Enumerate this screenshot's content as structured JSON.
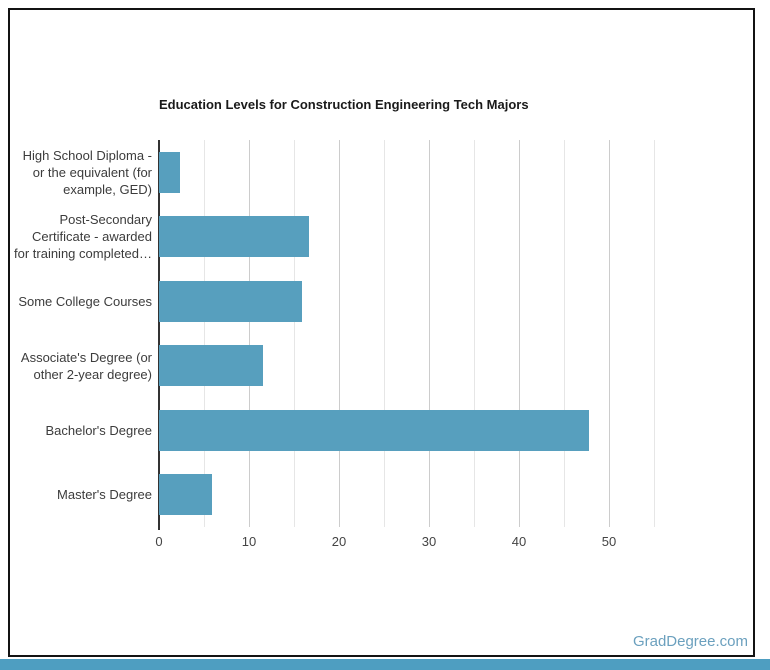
{
  "watermark": {
    "text": "GradDegree.com",
    "color": "#6BA0BE"
  },
  "theme": {
    "page_bg": "#ffffff",
    "card_border": "#131313",
    "footer_bar_color": "#4E9EC1",
    "title_color": "#1a1a1a",
    "label_color": "#3c3c3c",
    "tick_color": "#444444",
    "bar_color": "#579FBE",
    "major_grid_color": "#cccccc",
    "minor_grid_color": "#e6e6e6",
    "axis_color": "#333333"
  },
  "chart_data": {
    "type": "bar",
    "orientation": "horizontal",
    "title": "Education Levels for Construction Engineering Tech Majors",
    "categories": [
      "High School Diploma - or the equivalent (for example, GED)",
      "Post-Secondary Certificate - awarded for training completed…",
      "Some College Courses",
      "Associate's Degree (or other 2-year degree)",
      "Bachelor's Degree",
      "Master's Degree"
    ],
    "category_display_lines": [
      [
        "High School Diploma -",
        "or the equivalent (for",
        "example, GED)"
      ],
      [
        "Post-Secondary",
        "Certificate - awarded",
        "for training completed…"
      ],
      [
        "Some College Courses"
      ],
      [
        "Associate's Degree (or",
        "other 2-year degree)"
      ],
      [
        "Bachelor's Degree"
      ],
      [
        "Master's Degree"
      ]
    ],
    "values": [
      2.3,
      16.7,
      15.9,
      11.6,
      47.8,
      5.9
    ],
    "xlabel": "",
    "ylabel": "",
    "xlim": [
      0,
      55
    ],
    "x_ticks": [
      "0",
      "10",
      "20",
      "30",
      "40",
      "50"
    ],
    "x_tick_values": [
      0,
      10,
      20,
      30,
      40,
      50
    ],
    "minor_grid_step": 5,
    "grid": true,
    "legend": "none"
  }
}
